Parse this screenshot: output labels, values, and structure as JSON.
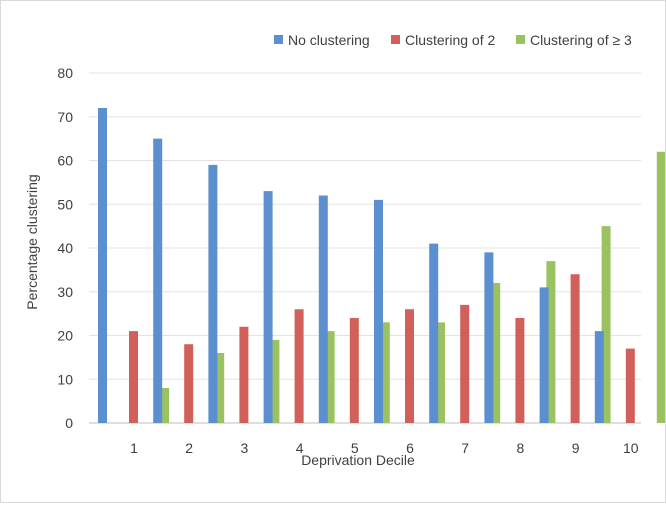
{
  "chart_data": {
    "type": "bar",
    "title": "",
    "xlabel": "Deprivation Decile",
    "ylabel": "Percentage clustering",
    "ylim": [
      0,
      80
    ],
    "yticks": [
      0,
      10,
      20,
      30,
      40,
      50,
      60,
      70,
      80
    ],
    "grid": true,
    "legend_position": "top-right",
    "categories": [
      "1",
      "2",
      "3",
      "4",
      "5",
      "6",
      "7",
      "8",
      "9",
      "10"
    ],
    "series": [
      {
        "name": "No clustering",
        "color": "#5b8fcf",
        "values": [
          72,
          65,
          59,
          53,
          52,
          51,
          41,
          39,
          31,
          21
        ]
      },
      {
        "name": "Clustering of 2",
        "color": "#d15f5a",
        "values": [
          21,
          18,
          22,
          26,
          24,
          26,
          27,
          24,
          34,
          17
        ]
      },
      {
        "name": "Clustering of ≥ 3",
        "color": "#9bc261",
        "values": [
          8,
          16,
          19,
          21,
          23,
          23,
          32,
          37,
          45,
          62
        ]
      }
    ]
  }
}
